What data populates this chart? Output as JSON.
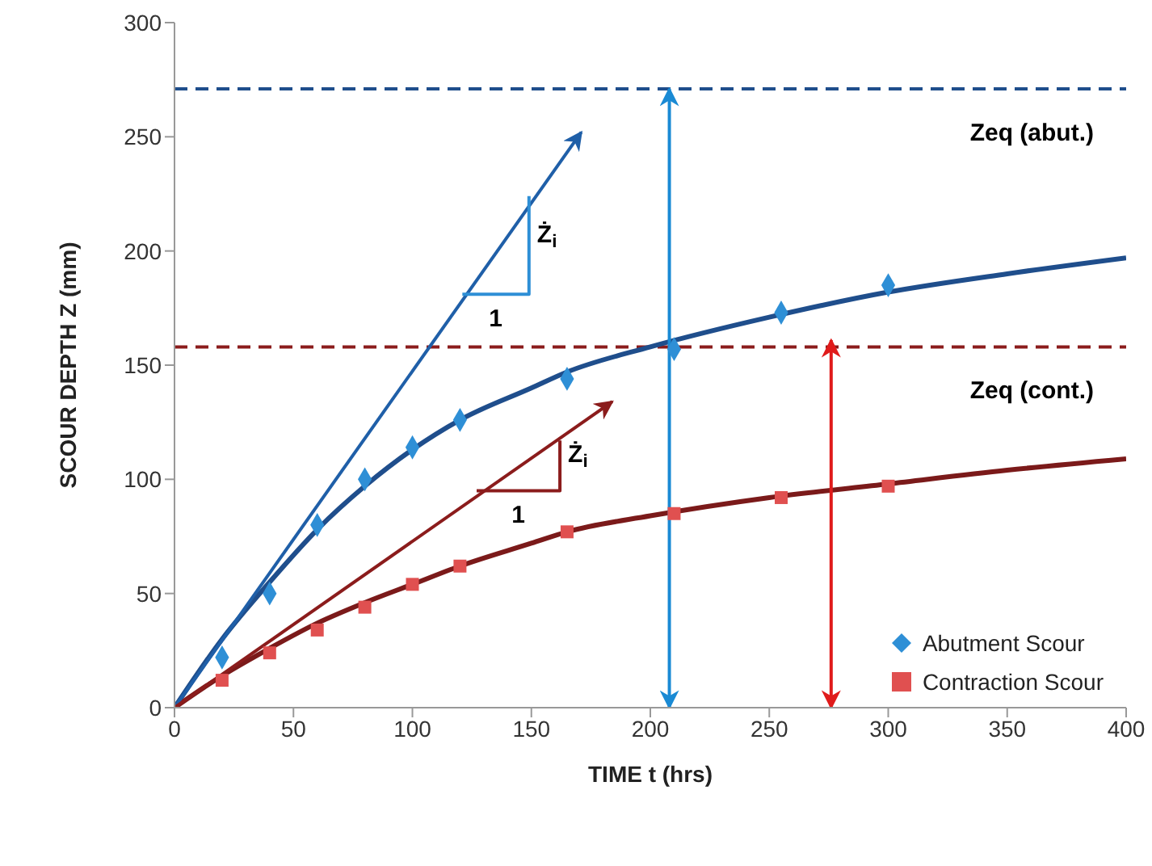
{
  "chart_data": {
    "type": "line",
    "xlabel": "TIME t (hrs)",
    "ylabel": "SCOUR DEPTH Z (mm)",
    "xlim": [
      0,
      400
    ],
    "xticks": [
      0,
      50,
      100,
      150,
      200,
      250,
      300,
      350,
      400
    ],
    "ylim": [
      0,
      300
    ],
    "yticks": [
      0,
      50,
      100,
      150,
      200,
      250,
      300
    ],
    "grid": false,
    "legend": "bottom right",
    "series": [
      {
        "color": "#1f4e8c",
        "marker": "none",
        "x": [
          0,
          20,
          40,
          60,
          80,
          100,
          120,
          150,
          165,
          200,
          250,
          300,
          350,
          400
        ],
        "values": [
          0,
          30,
          55,
          78,
          97,
          113,
          126,
          140,
          147,
          158,
          171,
          182,
          190,
          197
        ]
      },
      {
        "color": "#7b1a1a",
        "marker": "none",
        "x": [
          0,
          20,
          40,
          60,
          80,
          100,
          120,
          150,
          165,
          200,
          250,
          300,
          350,
          400
        ],
        "values": [
          0,
          14,
          26,
          37,
          46,
          54,
          62,
          72,
          77,
          84,
          92,
          98,
          104,
          109
        ]
      },
      {
        "color": "#1f5fa8",
        "marker": "none",
        "x": [
          0,
          171
        ],
        "values": [
          0,
          252
        ]
      },
      {
        "color": "#8b1c1c",
        "marker": "none",
        "x": [
          0,
          184
        ],
        "values": [
          0,
          134
        ]
      },
      {
        "color": "#2e8fd6",
        "marker": "none",
        "x": [
          121,
          149,
          149
        ],
        "values": [
          181,
          181,
          224
        ]
      },
      {
        "color": "#8b1c1c",
        "marker": "none",
        "x": [
          127,
          162,
          162
        ],
        "values": [
          95,
          95,
          117
        ]
      },
      {
        "color": "#1a8ad4",
        "marker": "none",
        "x": [
          208,
          208
        ],
        "values": [
          0,
          271
        ]
      },
      {
        "color": "#e01b1b",
        "marker": "none",
        "x": [
          276,
          276
        ],
        "values": [
          0,
          161
        ]
      },
      {
        "type": "scatter",
        "name": "Abutment Scour",
        "color": "#2e8fd6",
        "marker": "diamond",
        "x": [
          20,
          40,
          60,
          80,
          100,
          120,
          165,
          210,
          255,
          300
        ],
        "values": [
          22,
          50,
          80,
          100,
          114,
          126,
          144,
          157,
          173,
          185
        ]
      },
      {
        "type": "scatter",
        "name": "Contraction Scour",
        "color": "#e05050",
        "marker": "square",
        "x": [
          20,
          40,
          60,
          80,
          100,
          120,
          165,
          210,
          255,
          300
        ],
        "values": [
          12,
          24,
          34,
          44,
          54,
          62,
          77,
          85,
          92,
          97
        ]
      }
    ],
    "ref_lines": [
      {
        "axis": "y",
        "value": 271,
        "label": "Zeq (abut.)",
        "color": "#1f4e8c",
        "line_style": "dashed"
      },
      {
        "axis": "y",
        "value": 158,
        "label": "Zeq (cont.)",
        "color": "#8b1c1c",
        "line_style": "dashed"
      }
    ],
    "annotations": [
      "Ż$_{i}$",
      "1",
      "Ż$_{i}$",
      "1"
    ]
  }
}
